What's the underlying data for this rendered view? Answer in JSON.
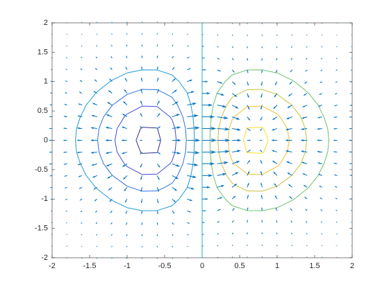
{
  "chart_data": {
    "type": "contour-quiver",
    "x": [
      -2,
      -1.8,
      -1.6,
      -1.4,
      -1.2,
      -1,
      -0.8,
      -0.6,
      -0.4,
      -0.2,
      0,
      0.2,
      0.4,
      0.6,
      0.8,
      1,
      1.2,
      1.4,
      1.6,
      1.8,
      2
    ],
    "y": [
      -2,
      -1.8,
      -1.6,
      -1.4,
      -1.2,
      -1,
      -0.8,
      -0.6,
      -0.4,
      -0.2,
      0,
      0.2,
      0.4,
      0.6,
      0.8,
      1,
      1.2,
      1.4,
      1.6,
      1.8,
      2
    ],
    "z": [
      [
        -0.0007,
        -0.0013,
        -0.0023,
        -0.0036,
        -0.0052,
        -0.0067,
        -0.0077,
        -0.0077,
        -0.0062,
        -0.0035,
        0,
        0.0035,
        0.0062,
        0.0077,
        0.0077,
        0.0067,
        0.0052,
        0.0036,
        0.0023,
        0.0013,
        0.0007
      ],
      [
        -0.0014,
        -0.0028,
        -0.0049,
        -0.0077,
        -0.0111,
        -0.0144,
        -0.0165,
        -0.0164,
        -0.0134,
        -0.0075,
        0,
        0.0075,
        0.0134,
        0.0164,
        0.0165,
        0.0144,
        0.0111,
        0.0077,
        0.0049,
        0.0028,
        0.0014
      ],
      [
        -0.0028,
        -0.0055,
        -0.0096,
        -0.0152,
        -0.022,
        -0.0284,
        -0.0326,
        -0.0324,
        -0.0263,
        -0.0149,
        0,
        0.0149,
        0.0263,
        0.0324,
        0.0326,
        0.0284,
        0.022,
        0.0152,
        0.0096,
        0.0055,
        0.0028
      ],
      [
        -0.0052,
        -0.0099,
        -0.0174,
        -0.0278,
        -0.0401,
        -0.0518,
        -0.0594,
        -0.059,
        -0.048,
        -0.0271,
        0,
        0.0271,
        0.048,
        0.059,
        0.0594,
        0.0518,
        0.0401,
        0.0278,
        0.0174,
        0.0099,
        0.0052
      ],
      [
        -0.0087,
        -0.0167,
        -0.0293,
        -0.0467,
        -0.0674,
        -0.0872,
        -0.0999,
        -0.0992,
        -0.0807,
        -0.0455,
        0,
        0.0455,
        0.0807,
        0.0992,
        0.0999,
        0.0872,
        0.0674,
        0.0467,
        0.0293,
        0.0167,
        0.0087
      ],
      [
        -0.0135,
        -0.0259,
        -0.0455,
        -0.0726,
        -0.1046,
        -0.1354,
        -0.1552,
        -0.154,
        -0.1254,
        -0.0707,
        0,
        0.0707,
        0.1254,
        0.154,
        0.1552,
        0.1354,
        0.1046,
        0.0726,
        0.0455,
        0.0259,
        0.0135
      ],
      [
        -0.0193,
        -0.0372,
        -0.0652,
        -0.104,
        -0.1499,
        -0.194,
        -0.2224,
        -0.2207,
        -0.1797,
        -0.1014,
        0,
        0.1014,
        0.1797,
        0.2207,
        0.2224,
        0.194,
        0.1499,
        0.104,
        0.0652,
        0.0372,
        0.0193
      ],
      [
        -0.0255,
        -0.0492,
        -0.0863,
        -0.1376,
        -0.1984,
        -0.2567,
        -0.2943,
        -0.2921,
        -0.2378,
        -0.1341,
        0,
        0.1341,
        0.2378,
        0.2921,
        0.2943,
        0.2567,
        0.1984,
        0.1376,
        0.0863,
        0.0492,
        0.0255
      ],
      [
        -0.0312,
        -0.0601,
        -0.1054,
        -0.168,
        -0.2423,
        -0.3135,
        -0.3594,
        -0.3567,
        -0.2904,
        -0.1638,
        0,
        0.1638,
        0.2904,
        0.3567,
        0.3594,
        0.3135,
        0.2423,
        0.168,
        0.1054,
        0.0601,
        0.0312
      ],
      [
        -0.0352,
        -0.0677,
        -0.1189,
        -0.1895,
        -0.2732,
        -0.3535,
        -0.4053,
        -0.4022,
        -0.3274,
        -0.1847,
        0,
        0.1847,
        0.3274,
        0.4022,
        0.4053,
        0.3535,
        0.2732,
        0.1895,
        0.1189,
        0.0677,
        0.0352
      ],
      [
        -0.0366,
        -0.0705,
        -0.1237,
        -0.1972,
        -0.2843,
        -0.3679,
        -0.4218,
        -0.4186,
        -0.3408,
        -0.1922,
        0,
        0.1922,
        0.3408,
        0.4186,
        0.4218,
        0.3679,
        0.2843,
        0.1972,
        0.1237,
        0.0705,
        0.0366
      ],
      [
        -0.0352,
        -0.0677,
        -0.1189,
        -0.1895,
        -0.2732,
        -0.3535,
        -0.4053,
        -0.4022,
        -0.3274,
        -0.1847,
        0,
        0.1847,
        0.3274,
        0.4022,
        0.4053,
        0.3535,
        0.2732,
        0.1895,
        0.1189,
        0.0677,
        0.0352
      ],
      [
        -0.0312,
        -0.0601,
        -0.1054,
        -0.168,
        -0.2423,
        -0.3135,
        -0.3594,
        -0.3567,
        -0.2904,
        -0.1638,
        0,
        0.1638,
        0.2904,
        0.3567,
        0.3594,
        0.3135,
        0.2423,
        0.168,
        0.1054,
        0.0601,
        0.0312
      ],
      [
        -0.0255,
        -0.0492,
        -0.0863,
        -0.1376,
        -0.1984,
        -0.2567,
        -0.2943,
        -0.2921,
        -0.2378,
        -0.1341,
        0,
        0.1341,
        0.2378,
        0.2921,
        0.2943,
        0.2567,
        0.1984,
        0.1376,
        0.0863,
        0.0492,
        0.0255
      ],
      [
        -0.0193,
        -0.0372,
        -0.0652,
        -0.104,
        -0.1499,
        -0.194,
        -0.2224,
        -0.2207,
        -0.1797,
        -0.1014,
        0,
        0.1014,
        0.1797,
        0.2207,
        0.2224,
        0.194,
        0.1499,
        0.104,
        0.0652,
        0.0372,
        0.0193
      ],
      [
        -0.0135,
        -0.0259,
        -0.0455,
        -0.0726,
        -0.1046,
        -0.1354,
        -0.1552,
        -0.154,
        -0.1254,
        -0.0707,
        0,
        0.0707,
        0.1254,
        0.154,
        0.1552,
        0.1354,
        0.1046,
        0.0726,
        0.0455,
        0.0259,
        0.0135
      ],
      [
        -0.0087,
        -0.0167,
        -0.0293,
        -0.0467,
        -0.0674,
        -0.0872,
        -0.0999,
        -0.0992,
        -0.0807,
        -0.0455,
        0,
        0.0455,
        0.0807,
        0.0992,
        0.0999,
        0.0872,
        0.0674,
        0.0467,
        0.0293,
        0.0167,
        0.0087
      ],
      [
        -0.0052,
        -0.0099,
        -0.0174,
        -0.0278,
        -0.0401,
        -0.0518,
        -0.0594,
        -0.059,
        -0.048,
        -0.0271,
        0,
        0.0271,
        0.048,
        0.059,
        0.0594,
        0.0518,
        0.0401,
        0.0278,
        0.0174,
        0.0099,
        0.0052
      ],
      [
        -0.0028,
        -0.0055,
        -0.0096,
        -0.0152,
        -0.022,
        -0.0284,
        -0.0326,
        -0.0324,
        -0.0263,
        -0.0149,
        0,
        0.0149,
        0.0263,
        0.0324,
        0.0326,
        0.0284,
        0.022,
        0.0152,
        0.0096,
        0.0055,
        0.0028
      ],
      [
        -0.0014,
        -0.0028,
        -0.0049,
        -0.0077,
        -0.0111,
        -0.0144,
        -0.0165,
        -0.0164,
        -0.0134,
        -0.0075,
        0,
        0.0075,
        0.0134,
        0.0164,
        0.0165,
        0.0144,
        0.0111,
        0.0077,
        0.0049,
        0.0028,
        0.0014
      ],
      [
        -0.0007,
        -0.0013,
        -0.0023,
        -0.0036,
        -0.0052,
        -0.0067,
        -0.0077,
        -0.0077,
        -0.0062,
        -0.0035,
        0,
        0.0035,
        0.0062,
        0.0077,
        0.0077,
        0.0067,
        0.0052,
        0.0036,
        0.0023,
        0.0013,
        0.0007
      ]
    ],
    "levels": [
      -0.4,
      -0.3,
      -0.2,
      -0.1,
      0,
      0.1,
      0.2,
      0.3,
      0.4
    ],
    "level_colors": [
      "#352a87",
      "#3f49d6",
      "#2a70e0",
      "#1e9ad6",
      "#1fb5b0",
      "#6cc16a",
      "#c6bf3a",
      "#f0bd30",
      "#f5df1c"
    ],
    "arrow_color": "#0072bd",
    "xlim": [
      -2,
      2
    ],
    "ylim": [
      -2,
      2
    ],
    "xticks": [
      -2,
      -1.5,
      -1,
      -0.5,
      0,
      0.5,
      1,
      1.5,
      2
    ],
    "yticks": [
      -2,
      -1.5,
      -1,
      -0.5,
      0,
      0.5,
      1,
      1.5,
      2
    ],
    "grid": false
  }
}
